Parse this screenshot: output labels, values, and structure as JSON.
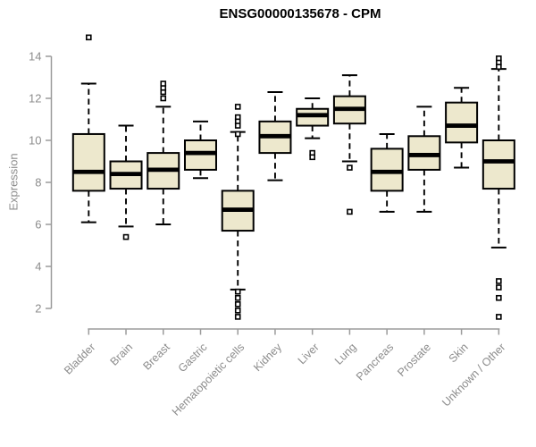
{
  "page": {
    "background_color": "#ffffff"
  },
  "chart_data": {
    "type": "boxplot",
    "title": "ENSG00000135678 - CPM",
    "xlabel": "",
    "ylabel": "Expression",
    "ylim": [
      1.3,
      15.1
    ],
    "yticks": [
      2,
      4,
      6,
      8,
      10,
      12,
      14
    ],
    "grid": false,
    "legend": null,
    "x_label_rotation": 45,
    "categories": [
      "Bladder",
      "Brain",
      "Breast",
      "Gastric",
      "Hematopoietic cells",
      "Kidney",
      "Liver",
      "Lung",
      "Pancreas",
      "Prostate",
      "Skin",
      "Unknown / Other"
    ],
    "series": [
      {
        "name": "Bladder",
        "whisker_low": 6.1,
        "q1": 7.6,
        "median": 8.5,
        "q3": 10.3,
        "whisker_high": 12.7,
        "outliers": [
          14.9
        ]
      },
      {
        "name": "Brain",
        "whisker_low": 5.9,
        "q1": 7.7,
        "median": 8.4,
        "q3": 9.0,
        "whisker_high": 10.7,
        "outliers": [
          5.4
        ]
      },
      {
        "name": "Breast",
        "whisker_low": 6.0,
        "q1": 7.7,
        "median": 8.6,
        "q3": 9.4,
        "whisker_high": 11.6,
        "outliers": [
          12.0,
          12.3,
          12.5,
          12.7
        ]
      },
      {
        "name": "Gastric",
        "whisker_low": 8.2,
        "q1": 8.6,
        "median": 9.4,
        "q3": 10.0,
        "whisker_high": 10.9,
        "outliers": []
      },
      {
        "name": "Hematopoietic cells",
        "whisker_low": 2.9,
        "q1": 5.7,
        "median": 6.7,
        "q3": 7.6,
        "whisker_high": 10.4,
        "outliers": [
          11.6,
          11.1,
          10.9,
          10.7,
          10.3,
          2.8,
          2.5,
          2.2,
          1.9,
          1.6
        ]
      },
      {
        "name": "Kidney",
        "whisker_low": 8.1,
        "q1": 9.4,
        "median": 10.2,
        "q3": 10.9,
        "whisker_high": 12.3,
        "outliers": []
      },
      {
        "name": "Liver",
        "whisker_low": 10.1,
        "q1": 10.7,
        "median": 11.2,
        "q3": 11.5,
        "whisker_high": 12.0,
        "outliers": [
          9.4,
          9.2
        ]
      },
      {
        "name": "Lung",
        "whisker_low": 9.0,
        "q1": 10.8,
        "median": 11.5,
        "q3": 12.1,
        "whisker_high": 13.1,
        "outliers": [
          8.7,
          6.6
        ]
      },
      {
        "name": "Pancreas",
        "whisker_low": 6.6,
        "q1": 7.6,
        "median": 8.5,
        "q3": 9.6,
        "whisker_high": 10.3,
        "outliers": []
      },
      {
        "name": "Prostate",
        "whisker_low": 6.6,
        "q1": 8.6,
        "median": 9.3,
        "q3": 10.2,
        "whisker_high": 11.6,
        "outliers": []
      },
      {
        "name": "Skin",
        "whisker_low": 8.7,
        "q1": 9.9,
        "median": 10.7,
        "q3": 11.8,
        "whisker_high": 12.5,
        "outliers": []
      },
      {
        "name": "Unknown / Other",
        "whisker_low": 4.9,
        "q1": 7.7,
        "median": 9.0,
        "q3": 10.0,
        "whisker_high": 13.4,
        "outliers": [
          13.9,
          13.7,
          13.5,
          3.3,
          3.0,
          2.5,
          1.6
        ]
      }
    ],
    "style": {
      "box_fill": "#EDE8CD",
      "box_stroke": "#000000",
      "median_color": "#000000",
      "whisker_color": "#000000",
      "outlier_fill": "#ffffff",
      "axis_color": "#9b9b9b",
      "tick_label_color": "#8c8c8c",
      "title_color": "#000000"
    }
  }
}
